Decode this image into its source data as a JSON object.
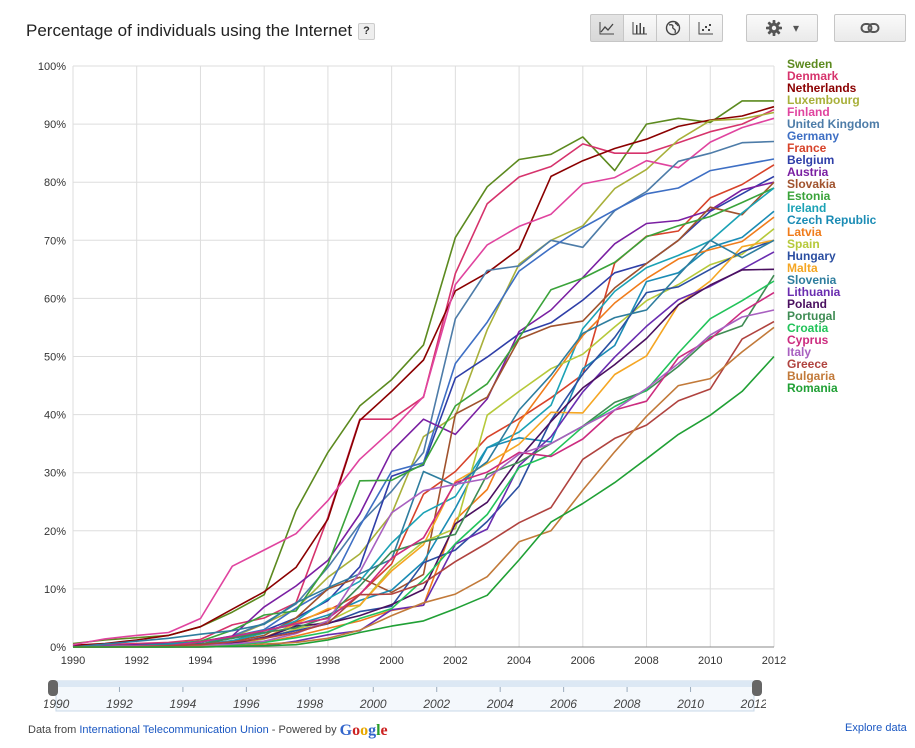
{
  "title": "Percentage of individuals using the Internet",
  "help_label": "?",
  "toolbar": {
    "views": [
      {
        "name": "line-chart-icon",
        "active": true
      },
      {
        "name": "bar-chart-icon",
        "active": false
      },
      {
        "name": "map-icon",
        "active": false
      },
      {
        "name": "scatter-chart-icon",
        "active": false
      }
    ],
    "settings_icon": "gear-icon",
    "settings_arrow": "▾",
    "link_icon": "link-icon"
  },
  "footer": {
    "prefix": "Data from ",
    "source": "International Telecommunication Union",
    "powered": " - Powered by ",
    "google": "Google",
    "explore": "Explore data"
  },
  "chart_data": {
    "type": "line",
    "title": "Percentage of individuals using the Internet",
    "xlabel": "",
    "ylabel": "",
    "xlim": [
      1990,
      2012
    ],
    "ylim": [
      0,
      100
    ],
    "x_ticks": [
      "1990",
      "1992",
      "1994",
      "1996",
      "1998",
      "2000",
      "2002",
      "2004",
      "2006",
      "2008",
      "2010",
      "2012"
    ],
    "y_ticks": [
      "0%",
      "10%",
      "20%",
      "30%",
      "40%",
      "50%",
      "60%",
      "70%",
      "80%",
      "90%",
      "100%"
    ],
    "grid": true,
    "legend_position": "right",
    "slider_ticks": [
      "1990",
      "1992",
      "1994",
      "1996",
      "1998",
      "2000",
      "2002",
      "2004",
      "2006",
      "2008",
      "2010",
      "2012"
    ],
    "x": [
      1990,
      1991,
      1992,
      1993,
      1994,
      1995,
      1996,
      1997,
      1998,
      1999,
      2000,
      2001,
      2002,
      2003,
      2004,
      2005,
      2006,
      2007,
      2008,
      2009,
      2010,
      2011,
      2012
    ],
    "series": [
      {
        "name": "Sweden",
        "color": "#5c8a1f",
        "values": [
          0.6,
          1.2,
          1.6,
          2,
          3.5,
          6,
          9,
          23.5,
          33.5,
          41.5,
          46,
          52,
          70.5,
          79.2,
          83.9,
          84.8,
          87.8,
          82,
          90,
          91,
          90.3,
          94,
          94
        ]
      },
      {
        "name": "Denmark",
        "color": "#d6336c",
        "values": [
          0.1,
          0.4,
          0.6,
          0.8,
          1.3,
          3.8,
          5,
          7.6,
          22.3,
          39.2,
          39.2,
          43,
          64.3,
          76.3,
          80.9,
          82.7,
          86.6,
          85,
          85,
          86.8,
          88.7,
          90,
          92.5
        ]
      },
      {
        "name": "Netherlands",
        "color": "#8b0000",
        "values": [
          0.3,
          0.6,
          1.2,
          2,
          3.5,
          6.5,
          9.5,
          13.7,
          22,
          39,
          44,
          49.4,
          61.3,
          64.4,
          68.5,
          81,
          83.7,
          85.8,
          87.4,
          89.6,
          90.7,
          91.4,
          93
        ]
      },
      {
        "name": "Luxembourg",
        "color": "#a8b03a",
        "values": [
          0.1,
          0.2,
          0.4,
          0.6,
          1,
          1.7,
          4,
          6.6,
          12,
          16,
          22.9,
          36.2,
          39.8,
          54.6,
          65.9,
          70,
          72.5,
          78.9,
          82.2,
          87.3,
          90.6,
          90.9,
          92
        ]
      },
      {
        "name": "Finland",
        "color": "#e0449f",
        "values": [
          0.4,
          1.4,
          2,
          2.5,
          4.9,
          13.9,
          16.7,
          19.5,
          25.2,
          32.3,
          37.3,
          43.1,
          62.4,
          69.2,
          72.4,
          74.5,
          79.7,
          80.8,
          83.7,
          82.5,
          86.9,
          89.4,
          91
        ]
      },
      {
        "name": "United Kingdom",
        "color": "#4d7ca8",
        "values": [
          0.1,
          0.1,
          0.2,
          0.5,
          0.9,
          1.9,
          4.1,
          7.4,
          13.7,
          21.2,
          26.8,
          33.5,
          56.5,
          64.8,
          65.6,
          70,
          68.8,
          75.1,
          78.4,
          83.6,
          85,
          86.8,
          87
        ]
      },
      {
        "name": "Germany",
        "color": "#3e6fc4",
        "values": [
          0.1,
          0.1,
          0.3,
          0.5,
          0.9,
          1.8,
          3,
          6.7,
          9.9,
          20.8,
          30.2,
          31.7,
          48.8,
          55.9,
          64.7,
          68.7,
          72.2,
          75.2,
          78,
          79,
          82,
          83,
          84
        ]
      },
      {
        "name": "France",
        "color": "#d7432a",
        "values": [
          0.1,
          0.1,
          0.2,
          0.3,
          0.5,
          1.6,
          2.4,
          4.3,
          6.3,
          9.1,
          14.3,
          26.3,
          30.2,
          36.1,
          39.3,
          42.9,
          46.9,
          66.1,
          70.7,
          71.6,
          77.3,
          79.6,
          83
        ]
      },
      {
        "name": "Belgium",
        "color": "#2f3fa8",
        "values": [
          0.1,
          0.1,
          0.2,
          0.3,
          0.6,
          1,
          2.8,
          5,
          8,
          13.8,
          29.4,
          31.3,
          46.3,
          49.9,
          53.9,
          55.8,
          59.7,
          64.4,
          66,
          70,
          75,
          78,
          81
        ]
      },
      {
        "name": "Austria",
        "color": "#7a1fa2",
        "values": [
          0.1,
          0.2,
          0.4,
          0.6,
          0.9,
          1.9,
          6.9,
          10.5,
          14.9,
          22.9,
          33.7,
          39.2,
          36.6,
          42.7,
          54.3,
          58,
          63.6,
          69.4,
          72.9,
          73.4,
          75.2,
          78.7,
          80
        ]
      },
      {
        "name": "Slovakia",
        "color": "#a0522d",
        "values": [
          0,
          0.1,
          0.1,
          0.2,
          0.4,
          1,
          2,
          5,
          10,
          12,
          9.4,
          12.5,
          40.1,
          43,
          53,
          55.2,
          56.1,
          61.8,
          66,
          70,
          75.7,
          74.4,
          80
        ]
      },
      {
        "name": "Estonia",
        "color": "#3aa33a",
        "values": [
          0,
          0.1,
          0.2,
          0.5,
          1,
          2.9,
          5.5,
          6.2,
          14.2,
          28.6,
          28.7,
          31.5,
          41.5,
          45.3,
          53.2,
          61.5,
          63.5,
          66.2,
          70.6,
          72.5,
          74.1,
          76.5,
          79
        ]
      },
      {
        "name": "Ireland",
        "color": "#1ba2b5",
        "values": [
          0,
          0.1,
          0.1,
          0.2,
          0.3,
          1.1,
          2.4,
          4.5,
          8.3,
          11.3,
          17.9,
          23.1,
          25.9,
          34.3,
          37,
          41.6,
          54.8,
          61.2,
          65.3,
          67.4,
          69.9,
          74.7,
          79
        ]
      },
      {
        "name": "Czech Republic",
        "color": "#1b8cb5",
        "values": [
          0,
          0.1,
          0.2,
          0.5,
          0.9,
          1.5,
          2.9,
          3.8,
          5.5,
          8,
          9.8,
          14.7,
          23.9,
          34.3,
          36,
          35.3,
          47.9,
          51.9,
          62.9,
          64.4,
          68.8,
          70.5,
          75
        ]
      },
      {
        "name": "Latvia",
        "color": "#f07c1b",
        "values": [
          0,
          0,
          0,
          0,
          0.2,
          0.5,
          0.8,
          1.9,
          3.2,
          4.5,
          6.3,
          7.2,
          21.9,
          27.1,
          38.6,
          46,
          53.6,
          59.2,
          63.4,
          66.8,
          68.4,
          69.8,
          74
        ]
      },
      {
        "name": "Spain",
        "color": "#b6c93a",
        "values": [
          0,
          0.1,
          0.1,
          0.1,
          0.3,
          0.4,
          1.4,
          3.1,
          4.4,
          7.1,
          13.6,
          18.1,
          20.4,
          39.9,
          44,
          47.9,
          50.4,
          55.1,
          59.6,
          62.4,
          65.8,
          67.6,
          72
        ]
      },
      {
        "name": "Hungary",
        "color": "#2b4fa1",
        "values": [
          0,
          0.1,
          0.1,
          0.2,
          0.4,
          0.7,
          1.7,
          2.8,
          4,
          6.1,
          7,
          14.5,
          16.7,
          21.6,
          27.7,
          39,
          47,
          53.3,
          61,
          62,
          65,
          68,
          70
        ]
      },
      {
        "name": "Malta",
        "color": "#f5a623",
        "values": [
          0,
          0,
          0,
          0,
          0,
          0.3,
          1.6,
          4,
          6.6,
          7.2,
          13.1,
          17.6,
          28.5,
          31.6,
          34.9,
          40.4,
          40.3,
          46.9,
          50.1,
          58.9,
          63,
          68.9,
          70
        ]
      },
      {
        "name": "Slovenia",
        "color": "#2e7d9e",
        "values": [
          0,
          0.5,
          1,
          1.5,
          2.2,
          2.8,
          3.9,
          7.6,
          10.2,
          12.6,
          15.1,
          30.2,
          27.8,
          31.9,
          40.8,
          46.8,
          54,
          56.7,
          58,
          64,
          70,
          67,
          70
        ]
      },
      {
        "name": "Lithuania",
        "color": "#6a2db0",
        "values": [
          0,
          0,
          0,
          0,
          0,
          0.1,
          0.2,
          1,
          2.1,
          2.8,
          6.4,
          7.2,
          17.7,
          20.3,
          31.2,
          36.2,
          43.9,
          49.9,
          55.2,
          59.8,
          62.1,
          65,
          68
        ]
      },
      {
        "name": "Poland",
        "color": "#4a1060",
        "values": [
          0,
          0,
          0.1,
          0.2,
          0.4,
          0.6,
          1.6,
          3.6,
          4.1,
          5.4,
          7.3,
          9.9,
          21.2,
          24.9,
          32.5,
          38.8,
          44.6,
          48.6,
          53.1,
          58.9,
          62.3,
          64.9,
          65
        ]
      },
      {
        "name": "Portugal",
        "color": "#3f8c54",
        "values": [
          0,
          0.1,
          0.2,
          0.3,
          0.5,
          1.5,
          2.5,
          3.3,
          5.1,
          10.5,
          16.4,
          18.1,
          19.4,
          29.7,
          31.8,
          35,
          38,
          42.1,
          44.1,
          48.3,
          53.3,
          55.3,
          64
        ]
      },
      {
        "name": "Croatia",
        "color": "#22c35a",
        "values": [
          0,
          0,
          0,
          0,
          0.2,
          0.3,
          0.8,
          1.6,
          2.6,
          4.9,
          6.6,
          11.6,
          17.8,
          22.8,
          30.9,
          33.1,
          37.9,
          41.4,
          44.2,
          50.6,
          56.5,
          59.6,
          63
        ]
      },
      {
        "name": "Cyprus",
        "color": "#cc2c7f",
        "values": [
          0,
          0,
          0,
          0.2,
          0.9,
          1.8,
          2.8,
          4,
          4.9,
          9,
          15.3,
          18.8,
          28.3,
          30.1,
          33.5,
          32.8,
          35.8,
          40.8,
          42.3,
          49.8,
          53,
          57.7,
          61
        ]
      },
      {
        "name": "Italy",
        "color": "#a860c0",
        "values": [
          0,
          0.1,
          0.2,
          0.2,
          0.3,
          0.5,
          1,
          2.3,
          4.5,
          12.9,
          23.1,
          26.9,
          28,
          29,
          33.2,
          35,
          38,
          40.8,
          44.5,
          48.8,
          53.7,
          56.8,
          58
        ]
      },
      {
        "name": "Greece",
        "color": "#b0433f",
        "values": [
          0,
          0,
          0.1,
          0.2,
          0.4,
          0.9,
          1.5,
          2.5,
          4.1,
          9,
          9.1,
          11,
          14.7,
          17.9,
          21.4,
          24,
          32.3,
          35.9,
          38.2,
          42.4,
          44.4,
          53,
          56
        ]
      },
      {
        "name": "Bulgaria",
        "color": "#c27a3a",
        "values": [
          0,
          0,
          0,
          0,
          0.1,
          0.1,
          0.5,
          0.8,
          1.5,
          2.9,
          5.4,
          7.6,
          9.1,
          12.1,
          18.1,
          20,
          27,
          33.6,
          39.7,
          45,
          46.2,
          50.8,
          55
        ]
      },
      {
        "name": "Romania",
        "color": "#20a035",
        "values": [
          0,
          0,
          0,
          0,
          0,
          0.1,
          0.2,
          0.4,
          1.2,
          2.5,
          3.6,
          4.5,
          6.6,
          8.9,
          15,
          21.5,
          24.7,
          28.3,
          32.4,
          36.6,
          39.9,
          44,
          50
        ]
      }
    ]
  }
}
